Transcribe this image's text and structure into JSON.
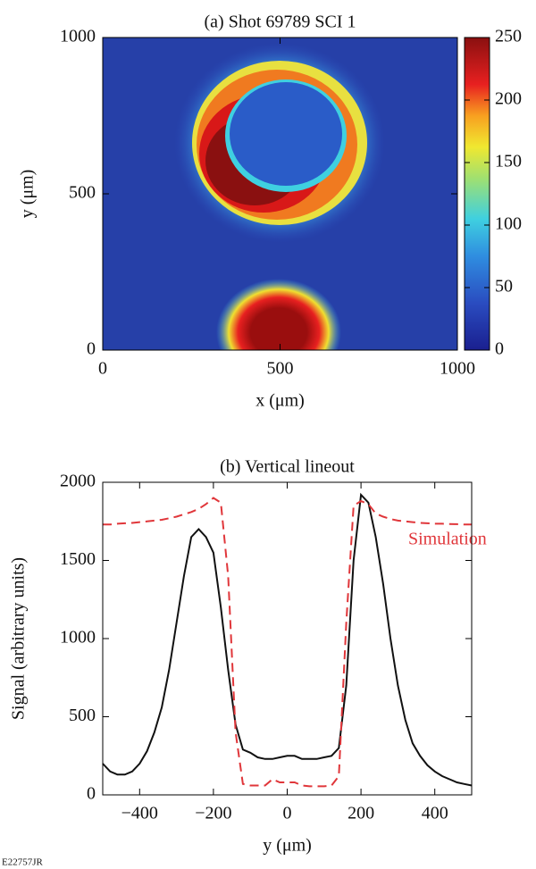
{
  "chart_data": [
    {
      "type": "heatmap",
      "title": "(a) Shot 69789 SCI 1",
      "x_label": "x (μm)",
      "y_label": "y (μm)",
      "xlim": [
        0,
        1000
      ],
      "ylim": [
        0,
        1000
      ],
      "xticks": [
        0,
        500,
        1000
      ],
      "yticks": [
        0,
        500,
        1000
      ],
      "colorbar": {
        "lim": [
          0,
          250
        ],
        "ticks": [
          0,
          50,
          100,
          150,
          200,
          250
        ]
      }
    },
    {
      "type": "line",
      "title": "(b) Vertical lineout",
      "x_label": "y (μm)",
      "y_label": "Signal (arbitrary units)",
      "xlim": [
        -500,
        500
      ],
      "ylim": [
        0,
        2000
      ],
      "xticks": [
        -400,
        -200,
        0,
        200,
        400
      ],
      "yticks": [
        0,
        500,
        1000,
        1500,
        2000
      ],
      "x": [
        -500,
        -480,
        -460,
        -440,
        -420,
        -400,
        -380,
        -360,
        -340,
        -320,
        -300,
        -280,
        -260,
        -240,
        -220,
        -200,
        -180,
        -160,
        -140,
        -120,
        -100,
        -80,
        -60,
        -40,
        -20,
        0,
        20,
        40,
        60,
        80,
        100,
        120,
        140,
        160,
        180,
        200,
        220,
        240,
        260,
        280,
        300,
        320,
        340,
        360,
        380,
        400,
        420,
        440,
        460,
        480,
        500
      ],
      "series": [
        {
          "color": "#111111",
          "dash": false,
          "values": [
            200,
            150,
            130,
            130,
            150,
            200,
            280,
            400,
            560,
            800,
            1100,
            1400,
            1650,
            1700,
            1650,
            1550,
            1200,
            800,
            450,
            290,
            270,
            240,
            230,
            230,
            240,
            250,
            250,
            230,
            230,
            230,
            240,
            250,
            300,
            700,
            1500,
            1920,
            1870,
            1650,
            1350,
            1000,
            700,
            480,
            330,
            250,
            190,
            150,
            120,
            100,
            80,
            70,
            60
          ]
        },
        {
          "name": "Simulation",
          "color": "#e0363a",
          "dash": true,
          "values": [
            1730,
            1730,
            1735,
            1738,
            1740,
            1745,
            1750,
            1755,
            1760,
            1770,
            1780,
            1795,
            1810,
            1830,
            1860,
            1900,
            1870,
            1400,
            400,
            70,
            60,
            60,
            60,
            100,
            80,
            80,
            80,
            60,
            55,
            55,
            55,
            60,
            120,
            1100,
            1850,
            1880,
            1860,
            1800,
            1780,
            1765,
            1755,
            1750,
            1745,
            1740,
            1738,
            1735,
            1735,
            1733,
            1732,
            1730,
            1730
          ]
        }
      ]
    }
  ],
  "figure_id": "E22757JR"
}
